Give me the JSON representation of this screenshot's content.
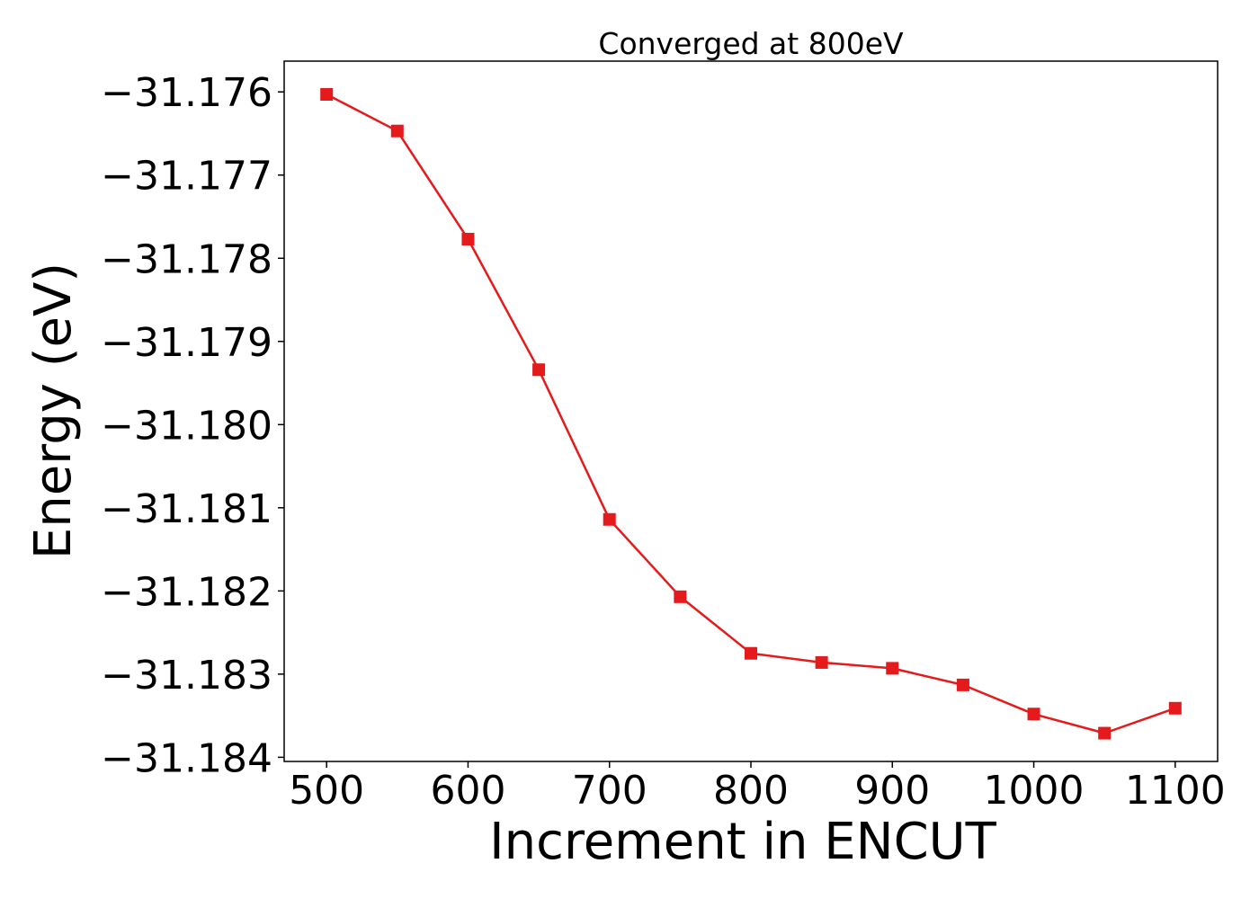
{
  "colors": {
    "series": "#e41a1c",
    "axes": "#000000",
    "background": "#ffffff"
  },
  "chart_data": {
    "type": "line",
    "title": "Converged at 800eV",
    "xlabel": "Increment in ENCUT",
    "ylabel": "Energy (eV)",
    "xlim": [
      470,
      1130
    ],
    "ylim": [
      -31.18405,
      -31.17563
    ],
    "x_ticks": [
      500,
      600,
      700,
      800,
      900,
      1000,
      1100
    ],
    "x_tick_labels": [
      "500",
      "600",
      "700",
      "800",
      "900",
      "1000",
      "1100"
    ],
    "y_ticks": [
      -31.176,
      -31.177,
      -31.178,
      -31.179,
      -31.18,
      -31.181,
      -31.182,
      -31.183,
      -31.184
    ],
    "y_tick_labels": [
      "−31.176",
      "−31.177",
      "−31.178",
      "−31.179",
      "−31.180",
      "−31.181",
      "−31.182",
      "−31.183",
      "−31.184"
    ],
    "grid": false,
    "marker": "square",
    "series": [
      {
        "x": [
          500,
          550,
          600,
          650,
          700,
          750,
          800,
          850,
          900,
          950,
          1000,
          1050,
          1100
        ],
        "values": [
          -31.17603,
          -31.17647,
          -31.17777,
          -31.17934,
          -31.18114,
          -31.18207,
          -31.18275,
          -31.18286,
          -31.18293,
          -31.18313,
          -31.18348,
          -31.18371,
          -31.18341
        ]
      }
    ]
  }
}
